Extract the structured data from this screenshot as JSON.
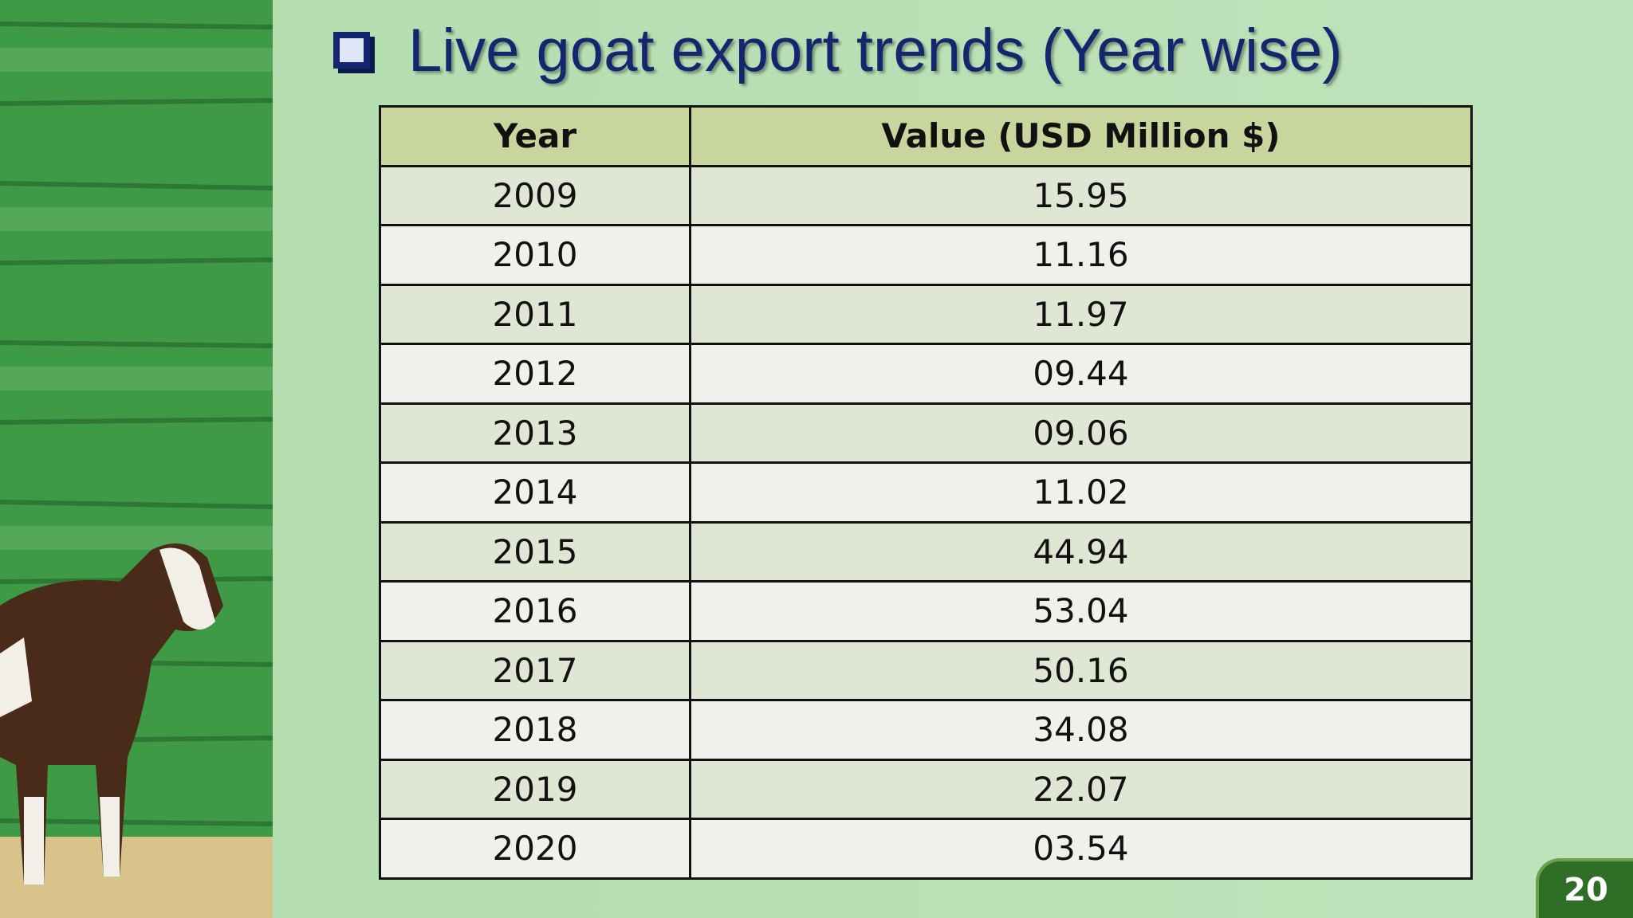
{
  "header": {
    "title": "Live goat export trends (Year wise)",
    "page_number": "20"
  },
  "table": {
    "columns": [
      "Year",
      "Value (USD Million $)"
    ],
    "rows": [
      [
        "2009",
        "15.95"
      ],
      [
        "2010",
        "11.16"
      ],
      [
        "2011",
        "11.97"
      ],
      [
        "2012",
        "09.44"
      ],
      [
        "2013",
        "09.06"
      ],
      [
        "2014",
        "11.02"
      ],
      [
        "2015",
        "44.94"
      ],
      [
        "2016",
        "53.04"
      ],
      [
        "2017",
        "50.16"
      ],
      [
        "2018",
        "34.08"
      ],
      [
        "2019",
        "22.07"
      ],
      [
        "2020",
        "03.54"
      ]
    ]
  }
}
